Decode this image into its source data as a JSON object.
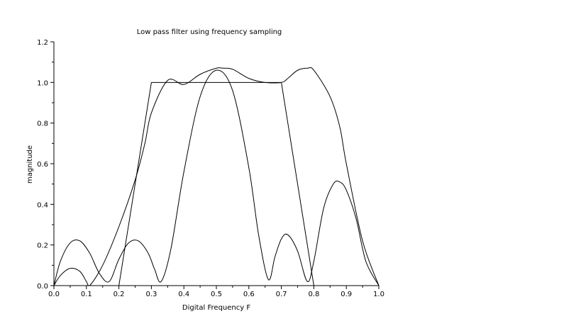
{
  "chart_data": {
    "type": "line",
    "title": "Low pass filter using frequency sampling",
    "xlabel": "Digital Frequency F",
    "ylabel": "magnitude",
    "xlim": [
      0.0,
      1.0
    ],
    "ylim": [
      0.0,
      1.2
    ],
    "xticks": [
      "0.0",
      "0.1",
      "0.2",
      "0.3",
      "0.4",
      "0.5",
      "0.6",
      "0.7",
      "0.8",
      "0.9",
      "1.0"
    ],
    "yticks": [
      "0.0",
      "0.2",
      "0.4",
      "0.6",
      "0.8",
      "1.0",
      "1.2"
    ],
    "grid": false,
    "colors": {
      "line": "#000000",
      "axes": "#000000",
      "background": "#ffffff"
    },
    "series": [
      {
        "x": [
          0.0,
          0.2,
          0.3,
          0.7,
          0.8,
          1.0
        ],
        "y": [
          0.0,
          0.0,
          1.0,
          1.0,
          0.0,
          0.0
        ]
      },
      {
        "x": [
          0.0,
          0.02,
          0.05,
          0.08,
          0.1,
          0.11,
          0.15,
          0.2,
          0.25,
          0.28,
          0.3,
          0.35,
          0.4,
          0.45,
          0.5,
          0.52,
          0.55,
          0.6,
          0.65,
          0.7,
          0.72,
          0.75,
          0.78,
          0.8,
          0.85,
          0.88,
          0.9,
          0.95,
          1.0
        ],
        "y": [
          0.0,
          0.05,
          0.085,
          0.07,
          0.02,
          0.0,
          0.1,
          0.29,
          0.52,
          0.7,
          0.85,
          1.01,
          0.99,
          1.04,
          1.07,
          1.07,
          1.065,
          1.02,
          1.0,
          1.0,
          1.02,
          1.06,
          1.07,
          1.06,
          0.93,
          0.78,
          0.6,
          0.22,
          0.0
        ]
      },
      {
        "x": [
          0.0,
          0.02,
          0.05,
          0.08,
          0.11,
          0.14,
          0.17,
          0.2,
          0.23,
          0.26,
          0.29,
          0.31,
          0.33,
          0.36,
          0.4,
          0.45,
          0.5,
          0.55,
          0.6,
          0.63,
          0.66,
          0.68,
          0.7,
          0.72,
          0.75,
          0.78,
          0.8,
          0.83,
          0.86,
          0.88,
          0.9,
          0.93,
          0.96,
          1.0
        ],
        "y": [
          0.0,
          0.12,
          0.21,
          0.22,
          0.16,
          0.06,
          0.02,
          0.13,
          0.21,
          0.22,
          0.16,
          0.08,
          0.02,
          0.18,
          0.56,
          0.93,
          1.06,
          0.96,
          0.58,
          0.25,
          0.03,
          0.14,
          0.23,
          0.25,
          0.17,
          0.02,
          0.12,
          0.38,
          0.5,
          0.51,
          0.47,
          0.33,
          0.12,
          0.0
        ]
      }
    ]
  }
}
